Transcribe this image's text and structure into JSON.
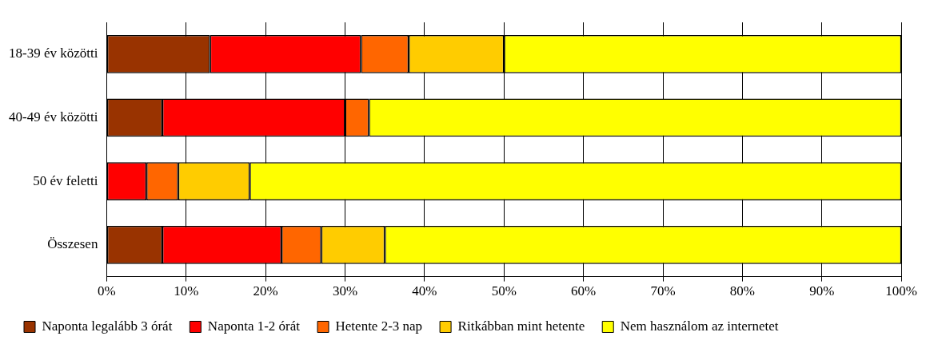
{
  "chart_data": {
    "type": "bar",
    "orientation": "horizontal",
    "stacked": true,
    "categories": [
      "18-39 év közötti",
      "40-49 év közötti",
      "50 év feletti",
      "Összesen"
    ],
    "series": [
      {
        "name": "Naponta legalább 3 órát",
        "color": "#993300",
        "values": [
          13,
          7,
          0,
          7
        ]
      },
      {
        "name": "Naponta 1-2 órát",
        "color": "#ff0000",
        "values": [
          19,
          23,
          5,
          15
        ]
      },
      {
        "name": "Hetente 2-3 nap",
        "color": "#ff6600",
        "values": [
          6,
          3,
          4,
          5
        ]
      },
      {
        "name": "Ritkábban mint hetente",
        "color": "#ffcc00",
        "values": [
          12,
          0,
          9,
          8
        ]
      },
      {
        "name": "Nem használom az internetet",
        "color": "#ffff00",
        "values": [
          50,
          67,
          82,
          65
        ]
      }
    ],
    "xlim": [
      0,
      100
    ],
    "xticks": [
      {
        "value": 0,
        "label": "0%"
      },
      {
        "value": 10,
        "label": "10%"
      },
      {
        "value": 20,
        "label": "20%"
      },
      {
        "value": 30,
        "label": "30%"
      },
      {
        "value": 40,
        "label": "40%"
      },
      {
        "value": 50,
        "label": "50%"
      },
      {
        "value": 60,
        "label": "60%"
      },
      {
        "value": 70,
        "label": "70%"
      },
      {
        "value": 80,
        "label": "80%"
      },
      {
        "value": 90,
        "label": "90%"
      },
      {
        "value": 100,
        "label": "100%"
      }
    ],
    "grid": "x",
    "legend": "bottom"
  }
}
